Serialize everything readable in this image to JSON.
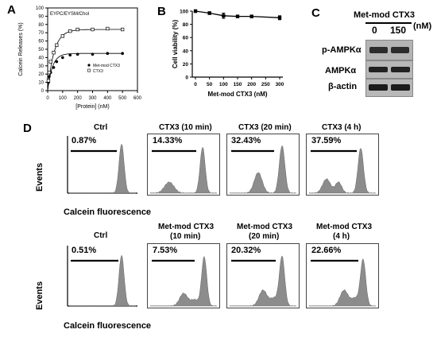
{
  "panels": {
    "A": {
      "letter": "A",
      "inset_title": "EYPC/EYSM/Chol",
      "xlabel": "[Protein] (nM)",
      "ylabel": "Calcein Releases (%)",
      "legend": [
        "Met-mod CTX3",
        "CTX3"
      ]
    },
    "B": {
      "letter": "B",
      "xlabel": "Met-mod CTX3 (nM)",
      "ylabel": "Cell viability (%)"
    },
    "C": {
      "letter": "C",
      "header": "Met-mod CTX3",
      "conc_labels": [
        "0",
        "150"
      ],
      "unit": "(nM)",
      "rows": [
        "p-AMPKα",
        "AMPKα",
        "β-actin"
      ]
    },
    "D": {
      "letter": "D",
      "ylabel": "Events",
      "xlabel": "Calcein fluorescence",
      "row1": [
        {
          "title": "Ctrl",
          "pct": "0.87%"
        },
        {
          "title": "CTX3 (10 min)",
          "pct": "14.33%"
        },
        {
          "title": "CTX3 (20 min)",
          "pct": "32.43%"
        },
        {
          "title": "CTX3  (4 h)",
          "pct": "37.59%"
        }
      ],
      "row2": [
        {
          "title": "Ctrl",
          "title2": "",
          "pct": "0.51%"
        },
        {
          "title": "Met-mod CTX3",
          "title2": "(10 min)",
          "pct": "7.53%"
        },
        {
          "title": "Met-mod CTX3",
          "title2": "(20 min)",
          "pct": "20.32%"
        },
        {
          "title": "Met-mod CTX3",
          "title2": "(4 h)",
          "pct": "22.66%"
        }
      ]
    }
  },
  "chart_data": [
    {
      "panel": "A",
      "type": "scatter",
      "xlim": [
        0,
        600
      ],
      "ylim": [
        0,
        100
      ],
      "xticks": [
        0,
        100,
        200,
        300,
        400,
        500,
        600
      ],
      "yticks": [
        0,
        10,
        20,
        30,
        40,
        50,
        60,
        70,
        80,
        90,
        100
      ],
      "series": [
        {
          "name": "Met-mod CTX3",
          "marker": "filled-circle",
          "x": [
            5,
            10,
            20,
            40,
            60,
            100,
            150,
            200,
            300,
            400,
            500
          ],
          "y": [
            10,
            17,
            22,
            28,
            35,
            40,
            43,
            44,
            44,
            45,
            45
          ]
        },
        {
          "name": "CTX3",
          "marker": "open-square",
          "x": [
            5,
            10,
            20,
            40,
            60,
            100,
            150,
            200,
            300,
            400,
            500
          ],
          "y": [
            12,
            22,
            35,
            46,
            55,
            66,
            72,
            74,
            74,
            75,
            74
          ]
        }
      ]
    },
    {
      "panel": "B",
      "type": "line",
      "xlim": [
        0,
        300
      ],
      "ylim": [
        0,
        100
      ],
      "xticks": [
        0,
        50,
        100,
        150,
        200,
        250,
        300
      ],
      "yticks": [
        0,
        20,
        40,
        60,
        80,
        100
      ],
      "x": [
        0,
        50,
        100,
        150,
        200,
        300
      ],
      "y": [
        100,
        97,
        93,
        92,
        92,
        90
      ],
      "err": [
        2,
        2,
        4,
        2,
        2,
        3
      ]
    }
  ]
}
